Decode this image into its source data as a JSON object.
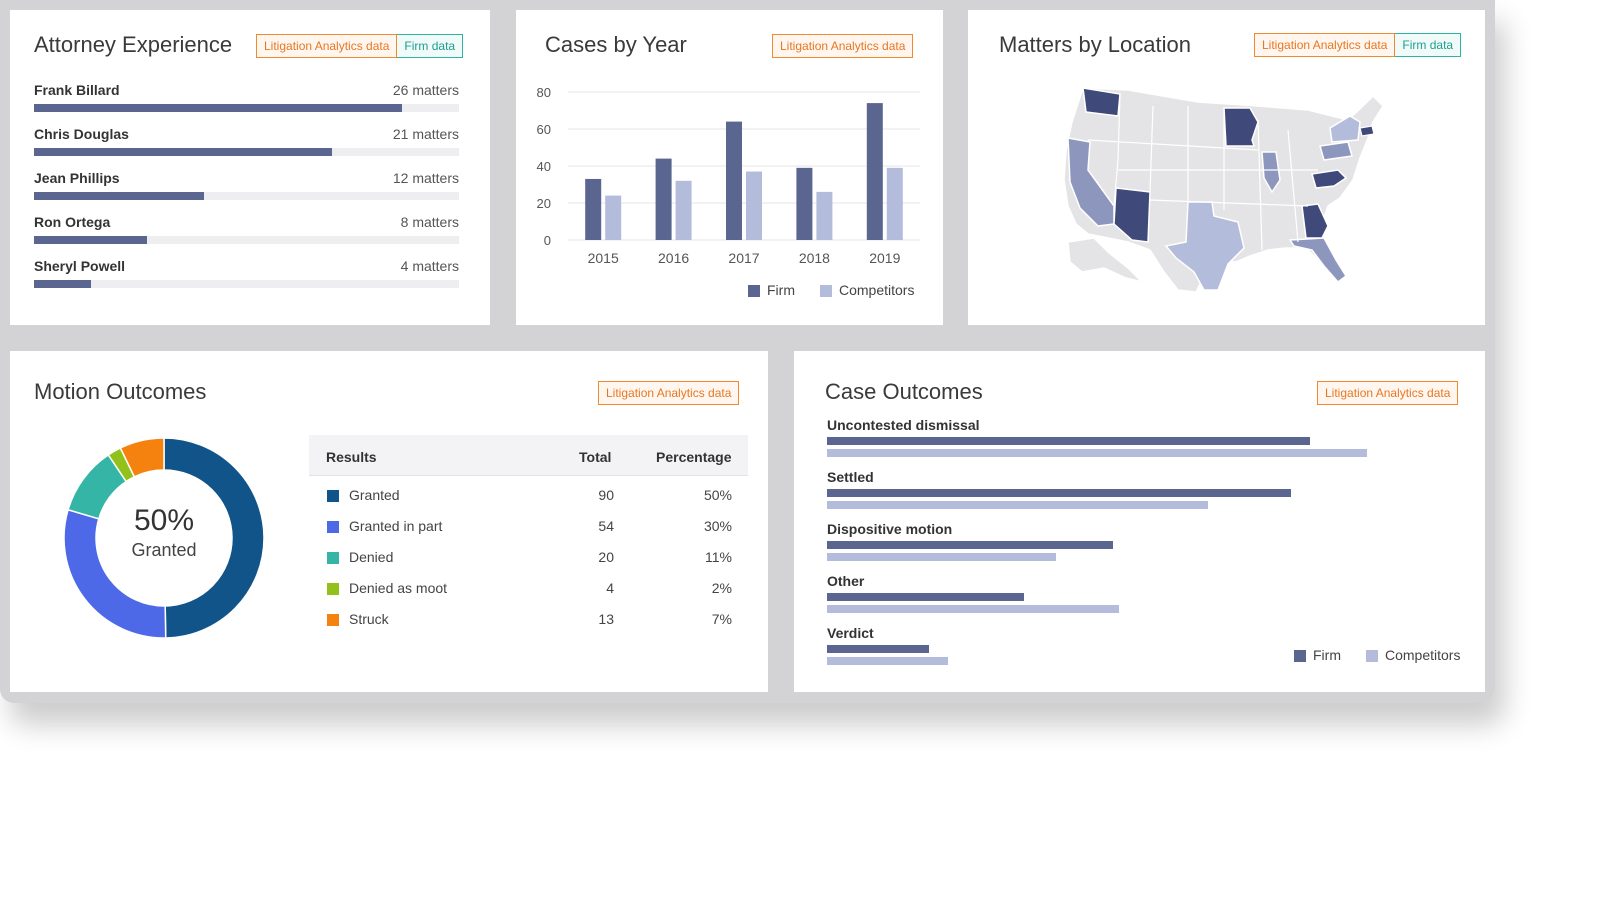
{
  "colors": {
    "firm": "#5a6590",
    "competitors": "#b4bcdb",
    "accent_orange": "#e87722",
    "accent_teal": "#1e9e8f"
  },
  "badges": {
    "litigation": "Litigation Analytics data",
    "firm": "Firm data"
  },
  "attorney": {
    "title": "Attorney Experience",
    "rows": [
      {
        "name": "Frank Billard",
        "count": "26 matters",
        "value": 26
      },
      {
        "name": "Chris Douglas",
        "count": "21 matters",
        "value": 21
      },
      {
        "name": "Jean Phillips",
        "count": "12 matters",
        "value": 12
      },
      {
        "name": "Ron Ortega",
        "count": "8 matters",
        "value": 8
      },
      {
        "name": "Sheryl Powell",
        "count": "4 matters",
        "value": 4
      }
    ],
    "max": 30
  },
  "cases_by_year": {
    "title": "Cases by Year"
  },
  "location": {
    "title": "Matters by Location"
  },
  "motion": {
    "title": "Motion Outcomes",
    "center_value": "50%",
    "center_label": "Granted",
    "headers": {
      "results": "Results",
      "total": "Total",
      "percentage": "Percentage"
    },
    "rows": [
      {
        "label": "Granted",
        "total": "90",
        "pct": "50%",
        "color": "#11548a"
      },
      {
        "label": "Granted in part",
        "total": "54",
        "pct": "30%",
        "color": "#4e69e8"
      },
      {
        "label": "Denied",
        "total": "20",
        "pct": "11%",
        "color": "#34b5a5"
      },
      {
        "label": "Denied as moot",
        "total": "4",
        "pct": "2%",
        "color": "#93c11c"
      },
      {
        "label": "Struck",
        "total": "13",
        "pct": "7%",
        "color": "#f5820f"
      }
    ]
  },
  "case_outcomes": {
    "title": "Case Outcomes"
  },
  "legend": {
    "firm": "Firm",
    "competitors": "Competitors"
  },
  "chart_data": [
    {
      "type": "bar",
      "title": "Cases by Year",
      "categories": [
        "2015",
        "2016",
        "2017",
        "2018",
        "2019"
      ],
      "series": [
        {
          "name": "Firm",
          "values": [
            33,
            44,
            64,
            39,
            74
          ]
        },
        {
          "name": "Competitors",
          "values": [
            24,
            32,
            37,
            26,
            39
          ]
        }
      ],
      "yticks": [
        0,
        20,
        40,
        60,
        80
      ],
      "ylim": [
        0,
        80
      ],
      "grid": true,
      "legend": "bottom-right"
    },
    {
      "type": "bar",
      "title": "Case Outcomes",
      "orientation": "horizontal",
      "categories": [
        "Uncontested dismissal",
        "Settled",
        "Dispositive motion",
        "Other",
        "Verdict"
      ],
      "series": [
        {
          "name": "Firm",
          "values": [
            76,
            73,
            45,
            31,
            16
          ]
        },
        {
          "name": "Competitors",
          "values": [
            85,
            60,
            36,
            46,
            19
          ]
        }
      ],
      "xlim": [
        0,
        100
      ],
      "legend": "bottom-right"
    },
    {
      "type": "pie",
      "title": "Motion Outcomes",
      "categories": [
        "Granted",
        "Granted in part",
        "Denied",
        "Denied as moot",
        "Struck"
      ],
      "values": [
        90,
        54,
        20,
        4,
        13
      ]
    }
  ]
}
